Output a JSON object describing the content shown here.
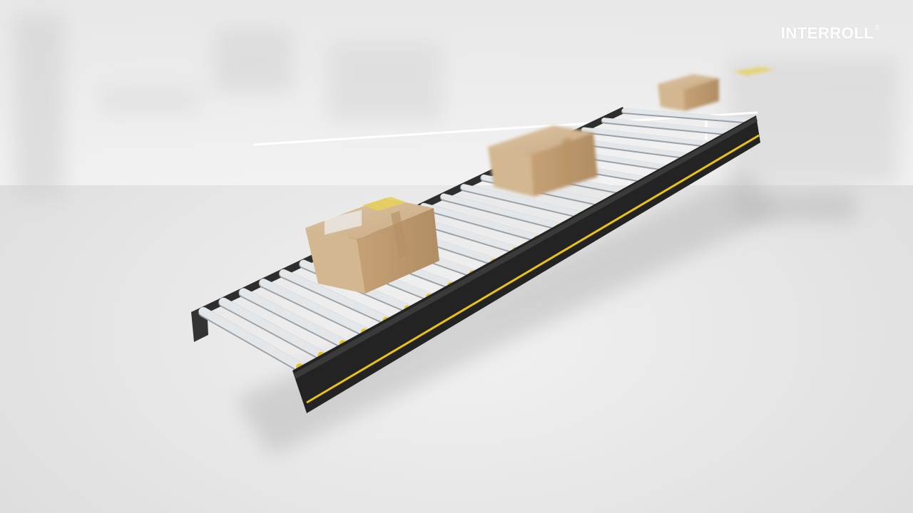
{
  "brand": {
    "name": "INTERROLL",
    "mark": "®"
  },
  "scene": {
    "subject": "roller-conveyor",
    "roller_count": 22,
    "parcel_count": 3,
    "colors": {
      "background": "#e6e6e6",
      "frame": "#2b2b2b",
      "accent_stripe": "#e8c21a",
      "roller": "#cfd4d8",
      "carton": "#c9a77f",
      "label": "#e7d05a"
    }
  }
}
